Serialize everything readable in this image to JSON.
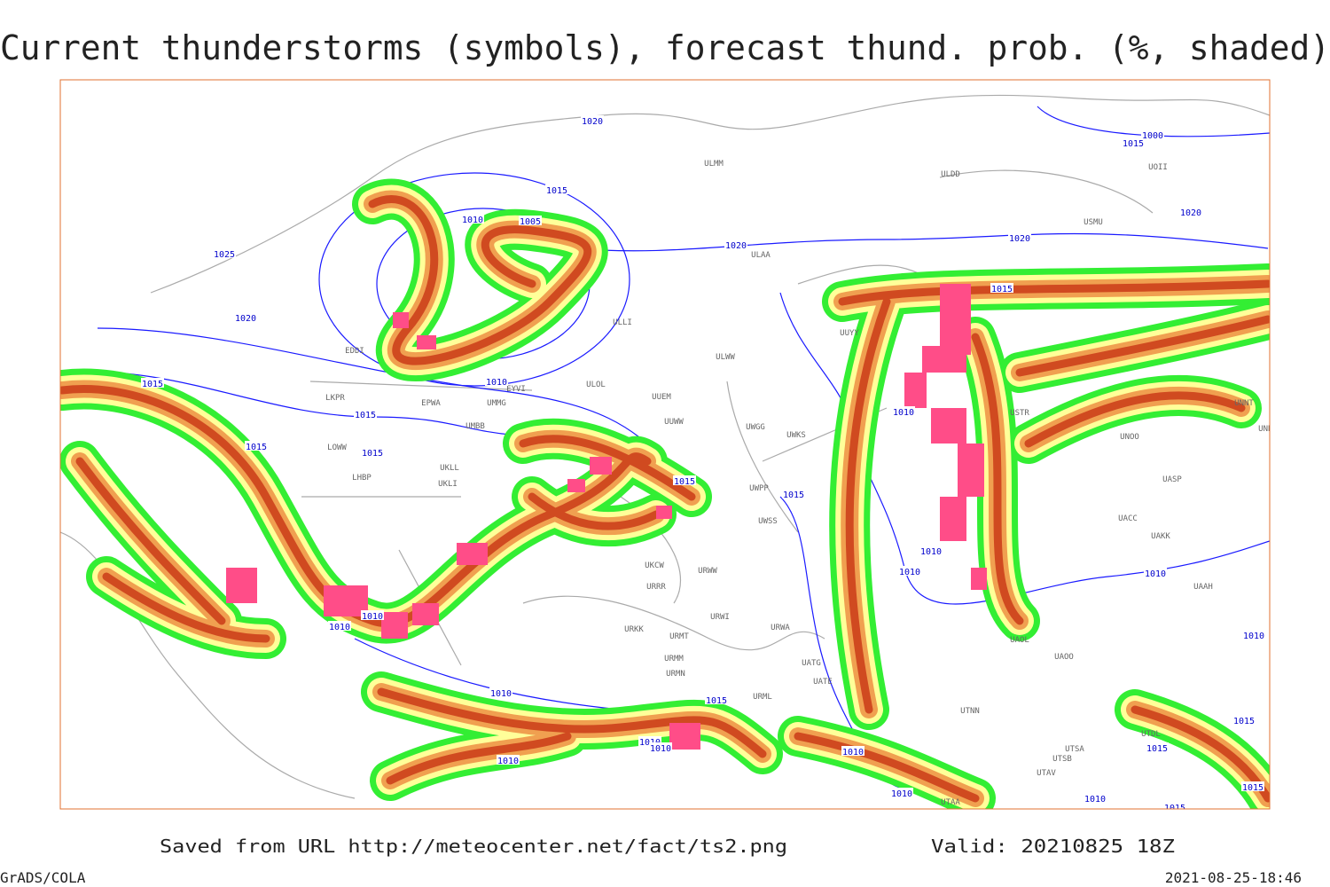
{
  "title": "Current thunderstorms (symbols), forecast thund. prob. (%, shaded)",
  "source": "Saved from URL http://meteocenter.net/fact/ts2.png",
  "valid": "Valid: 20210825 18Z",
  "software": "GrADS/COLA",
  "timestamp": "2021-08-25-18:46",
  "isobar_labels": [
    1020,
    1015,
    1010,
    1005,
    1025,
    1020,
    1020,
    1015,
    1020,
    1015,
    1020,
    1015,
    1015,
    1015,
    1015,
    1010,
    1015,
    1015,
    1010,
    1010,
    1010,
    1010,
    1010,
    1015,
    1010,
    1010,
    1010,
    1010,
    1010,
    1010,
    1015,
    1015,
    1015,
    1010,
    1015,
    1010,
    1000,
    1010
  ],
  "stations": [
    "ULMM",
    "ULDD",
    "UOII",
    "USMU",
    "ULAA",
    "UUYY",
    "ULWW",
    "ULOL",
    "UUEM",
    "UUWW",
    "UWGG",
    "UWKS",
    "UWPP",
    "UWSS",
    "URWW",
    "URRR",
    "UKCW",
    "URWI",
    "URWA",
    "URMT",
    "URKK",
    "URMM",
    "URMN",
    "URML",
    "UATE",
    "UATG",
    "UTNN",
    "UTAA",
    "UTSA",
    "UTSB",
    "UTAV",
    "UTDL",
    "UACC",
    "UAKK",
    "UASP",
    "UAAH",
    "UAOO",
    "UAOL",
    "UNBB",
    "UNNT",
    "UNOO",
    "USTR",
    "LKPR",
    "EPWA",
    "UMMG",
    "UMBB",
    "LOWW",
    "LHBP",
    "UKLL",
    "UKLI",
    "EYVI",
    "ULLI",
    "EDDI"
  ]
}
